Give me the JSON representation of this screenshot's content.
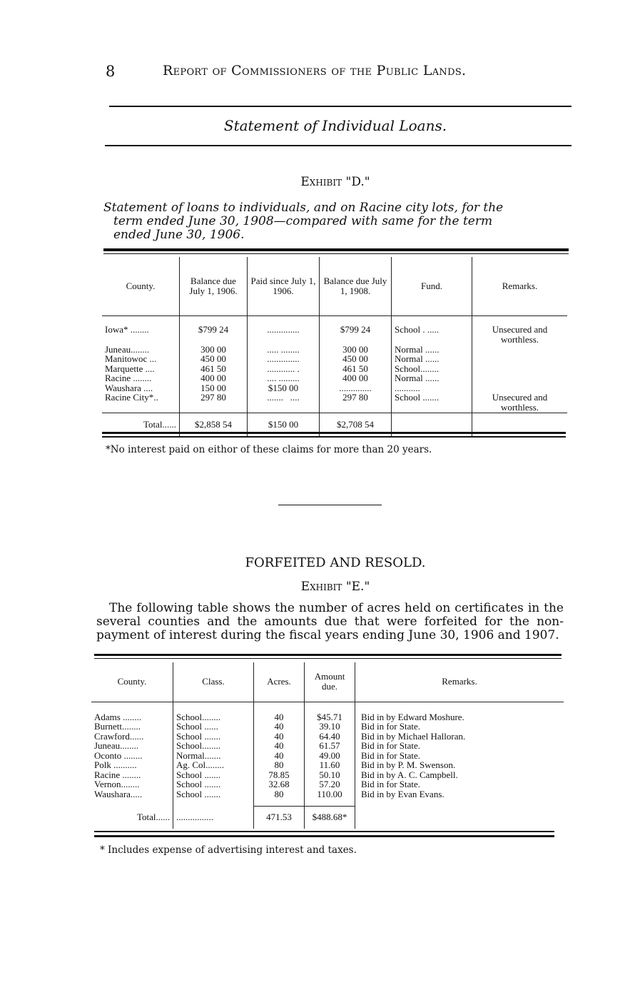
{
  "header": {
    "page_number": "8",
    "running_title": "Report of Commissioners of the Public Lands."
  },
  "section_title": "Statement of Individual Loans.",
  "exhibit_d": {
    "label": "Exhibit \"D.\"",
    "intro_lines": [
      "Statement of loans to individuals, and on Racine city lots, for the",
      "term ended June 30, 1908—compared with same for the term",
      "ended June 30, 1906."
    ],
    "columns": [
      "County.",
      "Balance due July 1, 1906.",
      "Paid since July 1, 1906.",
      "Balance due July 1, 1908.",
      "Fund.",
      "Remarks."
    ],
    "rows": [
      {
        "county": "Iowa* ........",
        "bal1906": "$799 24",
        "paid": "..............",
        "bal1908": "$799 24",
        "fund": "School . .....",
        "remarks": "Unsecured and worthless."
      },
      {
        "county": "Juneau........",
        "bal1906": "300 00",
        "paid": "..... ........",
        "bal1908": "300 00",
        "fund": "Normal ......",
        "remarks": ""
      },
      {
        "county": "Manitowoc ...",
        "bal1906": "450 00",
        "paid": "..............",
        "bal1908": "450 00",
        "fund": "Normal ......",
        "remarks": ""
      },
      {
        "county": "Marquette ....",
        "bal1906": "461 50",
        "paid": "............ .",
        "bal1908": "461 50",
        "fund": "School........",
        "remarks": ""
      },
      {
        "county": "Racine ........",
        "bal1906": "400 00",
        "paid": ".... .........",
        "bal1908": "400 00",
        "fund": "Normal ......",
        "remarks": ""
      },
      {
        "county": "Waushara ....",
        "bal1906": "150 00",
        "paid": "$150 00",
        "bal1908": "..............",
        "fund": "...........",
        "remarks": ""
      },
      {
        "county": "Racine City*..",
        "bal1906": "297 80",
        "paid": ".......   ....",
        "bal1908": "297 80",
        "fund": "School .......",
        "remarks": "Unsecured and worthless."
      }
    ],
    "total": {
      "label": "Total......",
      "bal1906": "$2,858 54",
      "paid": "$150 00",
      "bal1908": "$2,708 54"
    },
    "footnote": "*No interest paid on eithor of these claims for more than 20 years."
  },
  "forfeited": {
    "heading": "FORFEITED AND RESOLD.",
    "label": "Exhibit \"E.\"",
    "intro": "The following table shows the number of acres held on certificates in the several counties and the amounts due that were forfeited for the non-payment of interest during the fiscal years ending June 30, 1906 and 1907.",
    "columns": [
      "County.",
      "Class.",
      "Acres.",
      "Amount due.",
      "Remarks."
    ],
    "rows": [
      {
        "county": "Adams ........",
        "class": "School........",
        "acres": "40",
        "amount": "$45.71",
        "remarks": "Bid in by Edward Moshure."
      },
      {
        "county": "Burnett........",
        "class": "School ......",
        "acres": "40",
        "amount": "39.10",
        "remarks": "Bid in for State."
      },
      {
        "county": "Crawford......",
        "class": "School .......",
        "acres": "40",
        "amount": "64.40",
        "remarks": "Bid in by Michael Halloran."
      },
      {
        "county": "Juneau........",
        "class": "School........",
        "acres": "40",
        "amount": "61.57",
        "remarks": "Bid in for State."
      },
      {
        "county": "Oconto ........",
        "class": "Normal.......",
        "acres": "40",
        "amount": "49.00",
        "remarks": "Bid in for State."
      },
      {
        "county": "Polk ..........",
        "class": "Ag. Col........",
        "acres": "80",
        "amount": "11.60",
        "remarks": "Bid in by P. M. Swenson."
      },
      {
        "county": "Racine ........",
        "class": "School .......",
        "acres": "78.85",
        "amount": "50.10",
        "remarks": "Bid in by A. C. Campbell."
      },
      {
        "county": "Vernon........",
        "class": "School .......",
        "acres": "32.68",
        "amount": "57.20",
        "remarks": "Bid in for State."
      },
      {
        "county": "Waushara.....",
        "class": "School .......",
        "acres": "80",
        "amount": "110.00",
        "remarks": "Bid in by Evan Evans."
      }
    ],
    "total": {
      "label": "Total......",
      "class": "................",
      "acres": "471.53",
      "amount": "$488.68*"
    },
    "footnote": "* Includes expense of advertising interest and taxes."
  }
}
